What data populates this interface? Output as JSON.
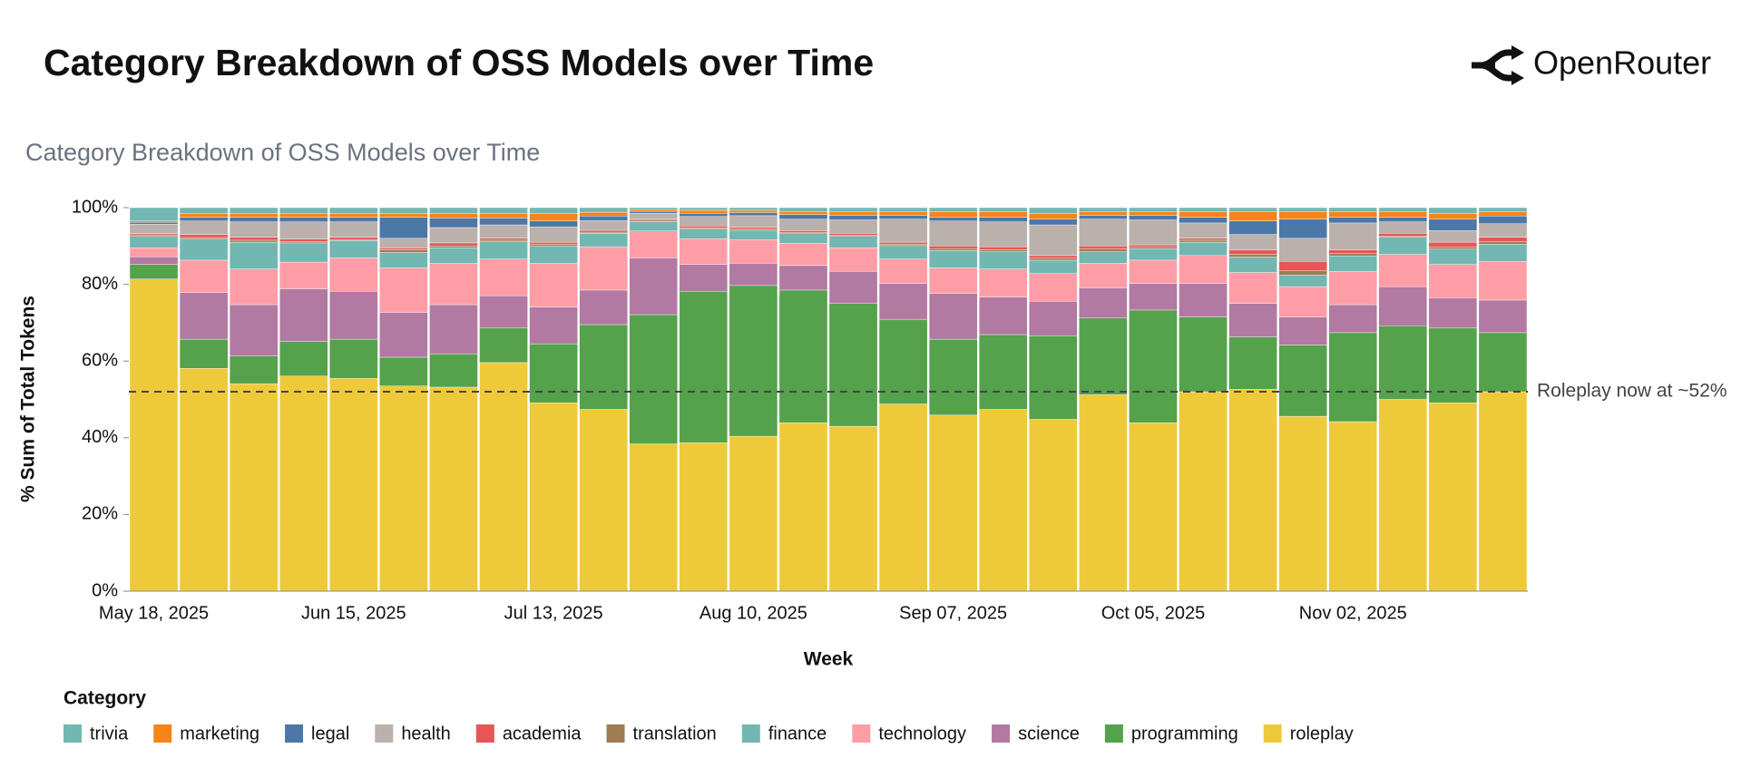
{
  "header": {
    "title": "Category Breakdown of OSS Models over Time",
    "brand": "OpenRouter"
  },
  "chart_data": {
    "type": "stacked-bar",
    "title": "Category Breakdown of OSS Models over Time",
    "x_label": "Week",
    "y_label": "% Sum of Total Tokens",
    "legend_title": "Category",
    "categories": [
      "May 18, 2025",
      null,
      null,
      null,
      "Jun 15, 2025",
      null,
      null,
      null,
      "Jul 13, 2025",
      null,
      null,
      null,
      "Aug 10, 2025",
      null,
      null,
      null,
      "Sep 07, 2025",
      null,
      null,
      null,
      "Oct 05, 2025",
      null,
      null,
      null,
      "Nov 02, 2025",
      null,
      null,
      null
    ],
    "ylim": [
      0,
      100
    ],
    "yticks": [
      {
        "value": 0,
        "label": "0%"
      },
      {
        "value": 20,
        "label": "20%"
      },
      {
        "value": 40,
        "label": "40%"
      },
      {
        "value": 60,
        "label": "60%"
      },
      {
        "value": 80,
        "label": "80%"
      },
      {
        "value": 100,
        "label": "100%"
      }
    ],
    "annotations": [
      {
        "text": "Roleplay now at ~52%",
        "value": 52
      }
    ],
    "series": [
      {
        "name": "trivia",
        "color": "#72b7b2",
        "values": [
          3.5,
          1.5,
          1.5,
          1.5,
          1.5,
          1.5,
          1.5,
          1.5,
          1.5,
          1.2,
          0.5,
          0.7,
          0.7,
          1.0,
          1.0,
          1.0,
          1.0,
          1.0,
          1.5,
          1.0,
          1.0,
          1.0,
          1.0,
          1.0,
          1.0,
          1.0,
          1.5,
          1.0
        ]
      },
      {
        "name": "marketing",
        "color": "#f58518",
        "values": [
          0.3,
          1,
          1,
          1,
          1,
          1,
          1.2,
          1.2,
          2,
          1,
          0.5,
          0.8,
          0.6,
          0.8,
          1,
          1,
          1.5,
          1.5,
          1.5,
          1,
          1,
          1.5,
          2.5,
          2,
          1.5,
          1.5,
          1.5,
          1.2
        ]
      },
      {
        "name": "legal",
        "color": "#4c78a8",
        "values": [
          0.5,
          1,
          1.2,
          1.2,
          1.2,
          5.5,
          2.5,
          1.8,
          1.5,
          1.2,
          0.5,
          0.8,
          0.8,
          1.2,
          1.2,
          1,
          1,
          1.2,
          1.5,
          1,
          1.2,
          1.5,
          3.5,
          5,
          1.5,
          1.2,
          3,
          2
        ]
      },
      {
        "name": "health",
        "color": "#bab0ac",
        "values": [
          2.5,
          3.5,
          4,
          4.5,
          4,
          2.5,
          4,
          3.5,
          4,
          2.5,
          1.5,
          2.5,
          3,
          3,
          3.5,
          6,
          6.5,
          6.5,
          8,
          7,
          6.5,
          4,
          4,
          6,
          7,
          3,
          3,
          3.5
        ]
      },
      {
        "name": "academia",
        "color": "#e45756",
        "values": [
          0.3,
          0.8,
          0.8,
          0.6,
          0.6,
          0.5,
          0.8,
          0.5,
          0.6,
          0.5,
          0.3,
          0.5,
          0.5,
          0.5,
          0.5,
          0.6,
          0.7,
          0.8,
          0.7,
          0.8,
          0.5,
          0.5,
          1.2,
          2.5,
          1,
          0.8,
          1.2,
          1.2
        ]
      },
      {
        "name": "translation",
        "color": "#9d7d51",
        "values": [
          0.4,
          0.4,
          0.5,
          0.4,
          0.3,
          0.7,
          0.5,
          0.4,
          0.4,
          0.3,
          0.3,
          0.3,
          0.3,
          0.3,
          0.3,
          0.3,
          0.5,
          0.5,
          0.5,
          0.7,
          0.5,
          0.5,
          0.7,
          1.1,
          0.6,
          0.2,
          0.6,
          0.6
        ]
      },
      {
        "name": "finance",
        "color": "#72b7b2",
        "values": [
          3,
          5.5,
          7,
          5,
          4.5,
          4,
          4,
          4.5,
          4.5,
          3.5,
          2.5,
          2.5,
          2.5,
          2.5,
          3,
          3.5,
          4.5,
          4.5,
          3.5,
          3,
          3,
          3.5,
          4,
          3,
          4,
          4.5,
          4,
          4.5
        ]
      },
      {
        "name": "technology",
        "color": "#ff9da6",
        "values": [
          2.3,
          8.4,
          9.3,
          7.0,
          8.7,
          11.6,
          10.8,
          9.6,
          11.4,
          11.3,
          7.0,
          6.7,
          6.1,
          5.8,
          6.1,
          6.4,
          6.7,
          7.3,
          7.2,
          6.4,
          6.1,
          7.3,
          8.1,
          7.9,
          8.7,
          8.4,
          8.7,
          10.1
        ]
      },
      {
        "name": "science",
        "color": "#b279a2",
        "values": [
          2.0,
          12.2,
          13.4,
          13.7,
          12.5,
          11.7,
          12.8,
          8.4,
          9.6,
          9.0,
          14.8,
          7.0,
          5.8,
          6.4,
          8.4,
          9.3,
          11.9,
          9.8,
          9.0,
          7.9,
          6.9,
          8.7,
          8.7,
          7.3,
          7.3,
          10.2,
          7.9,
          8.5
        ]
      },
      {
        "name": "programming",
        "color": "#54a24b",
        "values": [
          3.8,
          7.6,
          7.2,
          9.0,
          10.2,
          7.5,
          8.7,
          9.0,
          15.4,
          22.1,
          33.7,
          39.5,
          39.3,
          34.6,
          32.0,
          22.1,
          19.8,
          19.5,
          21.8,
          20.0,
          29.4,
          19.5,
          13.7,
          18.6,
          23.2,
          19.2,
          19.5,
          15.4
        ]
      },
      {
        "name": "roleplay",
        "color": "#eeca3b",
        "values": [
          81.4,
          58.1,
          54.1,
          56.1,
          55.5,
          53.5,
          53.2,
          59.6,
          49.1,
          47.4,
          38.4,
          38.7,
          40.4,
          43.9,
          43.0,
          48.8,
          45.9,
          47.4,
          44.8,
          51.2,
          43.9,
          52.0,
          52.6,
          45.6,
          44.2,
          50.0,
          49.1,
          52.0
        ]
      }
    ]
  }
}
